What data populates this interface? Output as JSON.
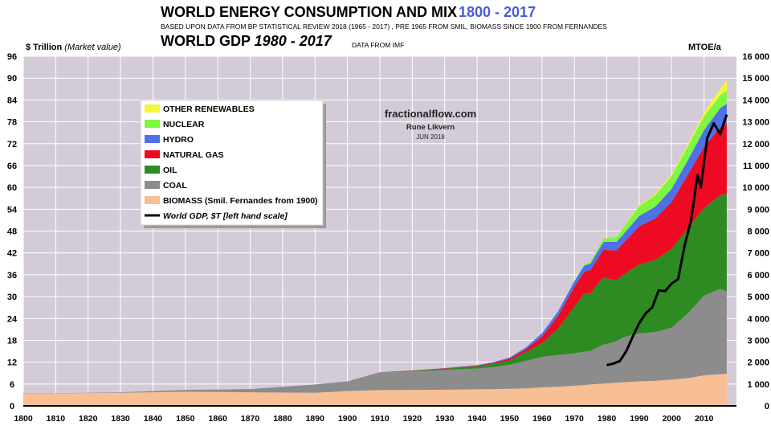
{
  "header": {
    "title": "WORLD ENERGY CONSUMPTION AND MIX",
    "title_years": "1800 - 2017",
    "subtitle": "BASED UPON DATA FROM BP STATISTICAL REVIEW 2018 (1965 - 2017) , PRE 1965 FROM SMIL,  BIOMASS SINCE 1900 FROM FERNANDES",
    "gdp_title_prefix": "WORLD GDP ",
    "gdp_title_years": "1980 - 2017",
    "gdp_source": "DATA FROM  IMF",
    "left_axis_label_bold": "$ Trillion ",
    "left_axis_label_italic": "(Market value)",
    "right_axis_label": "MTOE/a"
  },
  "watermark": {
    "site": "fractionalflow.com",
    "author": "Rune Likvern",
    "date": "JUN 2018"
  },
  "colors": {
    "plot_bg": "#d4cbd8",
    "gridline": "#ffffff",
    "biomass": "#f7bf93",
    "coal": "#8c8c8c",
    "oil": "#2e8b22",
    "natural_gas": "#ee0a22",
    "hydro": "#5070e8",
    "nuclear": "#7ef742",
    "other_renewables": "#f5f53a",
    "gdp_line": "#000000",
    "title_years": "#4a5bd8"
  },
  "chart_data": {
    "type": "area",
    "stacked": true,
    "x_axis": {
      "min": 1800,
      "max": 2020,
      "ticks": [
        1800,
        1810,
        1820,
        1830,
        1840,
        1850,
        1860,
        1870,
        1880,
        1890,
        1900,
        1910,
        1920,
        1930,
        1940,
        1950,
        1960,
        1970,
        1980,
        1990,
        2000,
        2010
      ]
    },
    "y_axis_right": {
      "label": "MTOE/a",
      "min": 0,
      "max": 16000,
      "ticks": [
        0,
        1000,
        2000,
        3000,
        4000,
        5000,
        6000,
        7000,
        8000,
        9000,
        10000,
        11000,
        12000,
        13000,
        14000,
        15000,
        16000
      ],
      "tick_labels": [
        "0",
        "1 000",
        "2 000",
        "3 000",
        "4 000",
        "5 000",
        "6 000",
        "7 000",
        "8 000",
        "9 000",
        "10 000",
        "11 000",
        "12 000",
        "13 000",
        "14 000",
        "15 000",
        "16 000"
      ]
    },
    "y_axis_left": {
      "label": "$ Trillion (Market value)",
      "min": 0,
      "max": 96,
      "ticks": [
        0,
        6,
        12,
        18,
        24,
        30,
        36,
        42,
        48,
        54,
        60,
        66,
        72,
        78,
        84,
        90,
        96
      ]
    },
    "grid": true,
    "legend_position": "top-left",
    "years": [
      1800,
      1830,
      1850,
      1870,
      1890,
      1900,
      1910,
      1920,
      1930,
      1940,
      1945,
      1950,
      1955,
      1960,
      1965,
      1970,
      1973,
      1975,
      1979,
      1980,
      1983,
      1985,
      1990,
      1995,
      2000,
      2005,
      2010,
      2015,
      2017
    ],
    "series": [
      {
        "name": "BIOMASS (Smil. Fernandes from 1900)",
        "key": "biomass",
        "values": [
          550,
          600,
          650,
          620,
          600,
          680,
          720,
          730,
          740,
          760,
          770,
          780,
          800,
          850,
          880,
          920,
          950,
          980,
          1020,
          1030,
          1060,
          1080,
          1120,
          1150,
          1200,
          1270,
          1400,
          1450,
          1470
        ]
      },
      {
        "name": "COAL",
        "key": "coal",
        "values": [
          10,
          20,
          80,
          150,
          380,
          440,
          800,
          850,
          900,
          950,
          1000,
          1100,
          1260,
          1390,
          1450,
          1480,
          1530,
          1540,
          1790,
          1800,
          1900,
          2050,
          2200,
          2230,
          2380,
          2960,
          3650,
          3900,
          3780
        ]
      },
      {
        "name": "OIL",
        "key": "oil",
        "values": [
          0,
          0,
          0,
          0,
          0,
          0,
          10,
          30,
          60,
          100,
          150,
          200,
          390,
          630,
          1200,
          2150,
          2650,
          2650,
          3100,
          3000,
          2800,
          2850,
          3150,
          3300,
          3600,
          3900,
          4000,
          4300,
          4450
        ]
      },
      {
        "name": "NATURAL GAS",
        "key": "natural_gas",
        "values": [
          0,
          0,
          0,
          0,
          0,
          0,
          5,
          10,
          20,
          30,
          50,
          80,
          140,
          300,
          600,
          900,
          1000,
          1050,
          1250,
          1300,
          1350,
          1450,
          1750,
          1900,
          2150,
          2450,
          2800,
          3100,
          3200
        ]
      },
      {
        "name": "HYDRO",
        "key": "hydro",
        "values": [
          0,
          0,
          0,
          0,
          0,
          0,
          0,
          5,
          10,
          20,
          30,
          50,
          80,
          150,
          200,
          250,
          280,
          300,
          350,
          380,
          400,
          410,
          470,
          540,
          600,
          660,
          770,
          880,
          920
        ]
      },
      {
        "name": "NUCLEAR",
        "key": "nuclear",
        "values": [
          0,
          0,
          0,
          0,
          0,
          0,
          0,
          0,
          0,
          0,
          0,
          0,
          0,
          0,
          10,
          20,
          50,
          90,
          140,
          160,
          230,
          300,
          450,
          530,
          590,
          630,
          630,
          580,
          600
        ]
      },
      {
        "name": "OTHER RENEWABLES",
        "key": "other_renewables",
        "values": [
          0,
          0,
          0,
          0,
          0,
          0,
          0,
          0,
          0,
          0,
          0,
          0,
          0,
          0,
          0,
          0,
          0,
          0,
          0,
          0,
          10,
          20,
          40,
          60,
          70,
          100,
          160,
          300,
          480
        ]
      },
      {
        "name": "World GDP, $T [left hand scale]",
        "key": "gdp",
        "axis": "left",
        "line": true,
        "x": [
          1980,
          1982,
          1984,
          1986,
          1988,
          1990,
          1992,
          1994,
          1996,
          1998,
          2000,
          2002,
          2004,
          2006,
          2008,
          2009,
          2011,
          2013,
          2015,
          2017
        ],
        "values": [
          11.2,
          11.6,
          12.3,
          15.0,
          19.0,
          22.7,
          25.4,
          27.0,
          31.7,
          31.5,
          33.6,
          34.8,
          44.0,
          51.0,
          63.4,
          60.0,
          73.6,
          77.6,
          74.6,
          80.0
        ]
      }
    ]
  }
}
